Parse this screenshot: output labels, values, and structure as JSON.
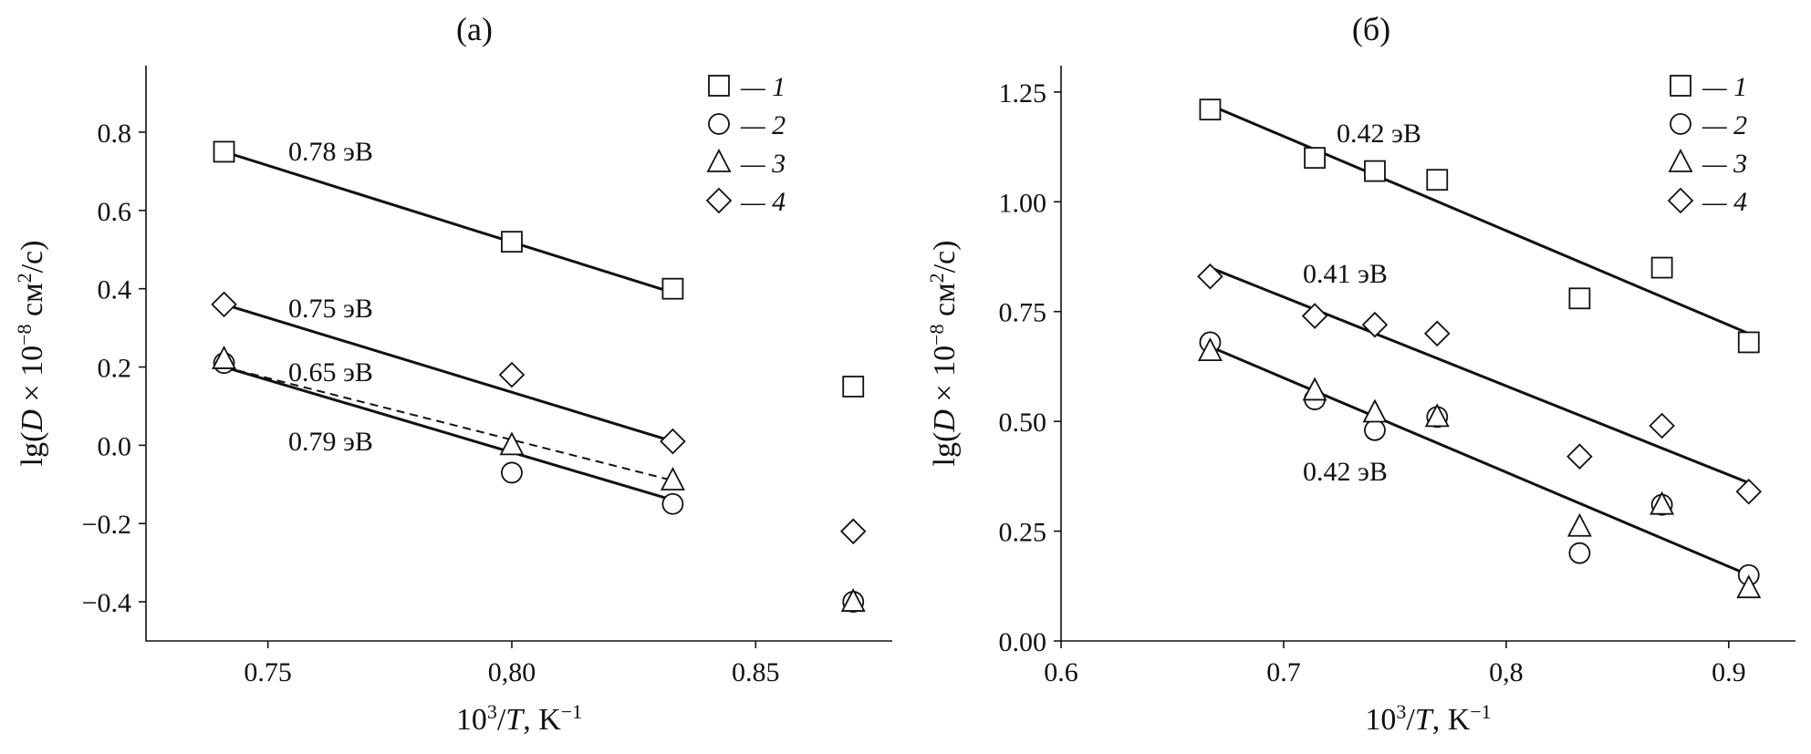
{
  "chart_data": [
    {
      "type": "scatter",
      "title": "(а)",
      "xlabel": "10³/T, K⁻¹",
      "ylabel": "lg(D × 10⁻⁸ см²/с)",
      "xlim": [
        0.725,
        0.878
      ],
      "ylim": [
        -0.5,
        0.97
      ],
      "xticks": [
        0.75,
        0.8,
        0.85
      ],
      "xtick_labels": [
        "0.75",
        "0,80",
        "0.85"
      ],
      "yticks": [
        -0.4,
        -0.2,
        0.0,
        0.2,
        0.4,
        0.6,
        0.8
      ],
      "ytick_labels": [
        "−0.4",
        "−0.2",
        "0.0",
        "0.2",
        "0.4",
        "0.6",
        "0.8"
      ],
      "legend": {
        "position": "top-right",
        "entries": [
          "— 1",
          "— 2",
          "— 3",
          "— 4"
        ]
      },
      "series": [
        {
          "name": "1",
          "marker": "square",
          "x": [
            0.741,
            0.8,
            0.833,
            0.87
          ],
          "y": [
            0.75,
            0.52,
            0.4,
            0.15
          ],
          "fit": {
            "x": [
              0.741,
              0.833
            ],
            "y": [
              0.75,
              0.39
            ],
            "style": "solid",
            "label": "0.78 эВ"
          }
        },
        {
          "name": "2",
          "marker": "circle",
          "x": [
            0.741,
            0.8,
            0.833,
            0.87
          ],
          "y": [
            0.21,
            -0.07,
            -0.15,
            -0.4
          ],
          "fit": {
            "x": [
              0.741,
              0.833
            ],
            "y": [
              0.2,
              -0.14
            ],
            "style": "solid",
            "label": "0.79 эВ"
          }
        },
        {
          "name": "3",
          "marker": "triangle",
          "x": [
            0.741,
            0.8,
            0.833,
            0.87
          ],
          "y": [
            0.22,
            0.0,
            -0.09,
            -0.4
          ],
          "fit": {
            "x": [
              0.741,
              0.833
            ],
            "y": [
              0.2,
              -0.09
            ],
            "style": "dashed",
            "label": "0.65 эВ"
          }
        },
        {
          "name": "4",
          "marker": "diamond",
          "x": [
            0.741,
            0.8,
            0.833,
            0.87
          ],
          "y": [
            0.36,
            0.18,
            0.01,
            -0.22
          ],
          "fit": {
            "x": [
              0.741,
              0.833
            ],
            "y": [
              0.36,
              0.01
            ],
            "style": "solid",
            "label": "0.75 эВ"
          }
        }
      ]
    },
    {
      "type": "scatter",
      "title": "(б)",
      "xlabel": "10³/T, K⁻¹",
      "ylabel": "lg(D × 10⁻⁸ см²/с)",
      "xlim": [
        0.6,
        0.93
      ],
      "ylim": [
        0.0,
        1.31
      ],
      "xticks": [
        0.6,
        0.7,
        0.8,
        0.9
      ],
      "xtick_labels": [
        "0.6",
        "0.7",
        "0,8",
        "0.9"
      ],
      "yticks": [
        0.0,
        0.25,
        0.5,
        0.75,
        1.0,
        1.25
      ],
      "ytick_labels": [
        "0.00",
        "0.25",
        "0.50",
        "0.75",
        "1.00",
        "1.25"
      ],
      "legend": {
        "position": "top-right",
        "entries": [
          "— 1",
          "— 2",
          "— 3",
          "— 4"
        ]
      },
      "series": [
        {
          "name": "1",
          "marker": "square",
          "x": [
            0.667,
            0.714,
            0.741,
            0.769,
            0.833,
            0.87,
            0.909
          ],
          "y": [
            1.21,
            1.1,
            1.07,
            1.05,
            0.78,
            0.85,
            0.68
          ],
          "fit": {
            "x": [
              0.667,
              0.909
            ],
            "y": [
              1.22,
              0.7
            ],
            "style": "solid",
            "label": "0.42 эВ"
          }
        },
        {
          "name": "2",
          "marker": "circle",
          "x": [
            0.667,
            0.714,
            0.741,
            0.769,
            0.833,
            0.87,
            0.909
          ],
          "y": [
            0.68,
            0.55,
            0.48,
            0.51,
            0.2,
            0.31,
            0.15
          ],
          "fit": {
            "x": [
              0.667,
              0.909
            ],
            "y": [
              0.67,
              0.15
            ],
            "style": "solid",
            "label": "0.42 эВ"
          }
        },
        {
          "name": "3",
          "marker": "triangle",
          "x": [
            0.667,
            0.714,
            0.741,
            0.769,
            0.833,
            0.87,
            0.909
          ],
          "y": [
            0.66,
            0.57,
            0.52,
            0.51,
            0.26,
            0.31,
            0.12
          ],
          "fit": {
            "x": [
              0.667,
              0.909
            ],
            "y": [
              0.67,
              0.15
            ],
            "style": "dashed",
            "label": ""
          }
        },
        {
          "name": "4",
          "marker": "diamond",
          "x": [
            0.667,
            0.714,
            0.741,
            0.769,
            0.833,
            0.87,
            0.909
          ],
          "y": [
            0.83,
            0.74,
            0.72,
            0.7,
            0.42,
            0.49,
            0.34
          ],
          "fit": {
            "x": [
              0.667,
              0.909
            ],
            "y": [
              0.85,
              0.36
            ],
            "style": "solid",
            "label": "0.41 эВ"
          }
        }
      ]
    }
  ]
}
